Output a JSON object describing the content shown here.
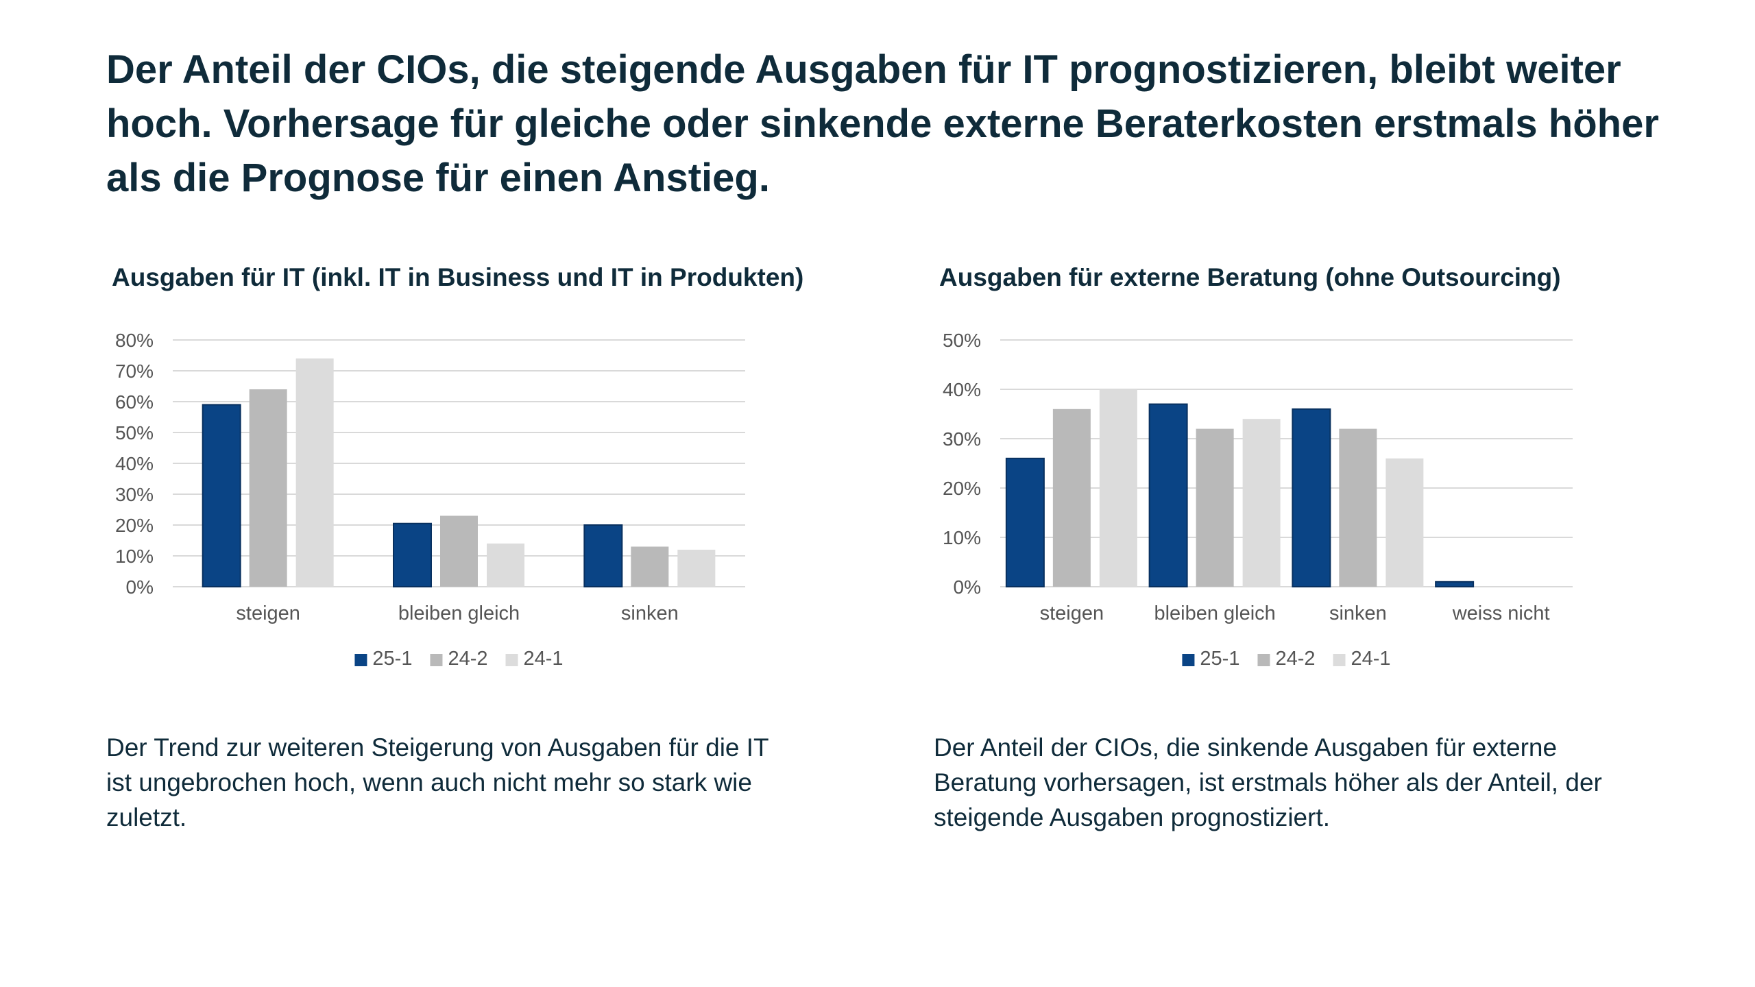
{
  "headline": "Der Anteil der CIOs, die steigende Ausgaben für IT prognostizieren, bleibt weiter hoch. Vorhersage für gleiche oder sinkende externe Beraterkosten erstmals höher als die Prognose für einen Anstieg.",
  "colors": {
    "series": [
      "#0a4485",
      "#b9b9b9",
      "#dcdcdc"
    ],
    "text": "#0f2b3a",
    "grid": "#d9d9d9",
    "axis_text": "#555555"
  },
  "panels": {
    "left": {
      "title": "Ausgaben für IT (inkl. IT in Business und IT in Produkten)",
      "caption": "Der Trend zur weiteren Steigerung von Ausgaben für die IT ist ungebrochen hoch, wenn auch nicht mehr so stark wie zuletzt."
    },
    "right": {
      "title": "Ausgaben für externe Beratung (ohne Outsourcing)",
      "caption": "Der Anteil der CIOs, die sinkende Ausgaben für externe Beratung vorhersagen, ist erstmals höher als der Anteil, der steigende Ausgaben prognostiziert."
    }
  },
  "chart_data": [
    {
      "type": "bar",
      "title": "Ausgaben für IT (inkl. IT in Business und IT in Produkten)",
      "categories": [
        "steigen",
        "bleiben gleich",
        "sinken"
      ],
      "series": [
        {
          "name": "25-1",
          "values": [
            59,
            20.5,
            20
          ]
        },
        {
          "name": "24-2",
          "values": [
            64,
            23,
            13
          ]
        },
        {
          "name": "24-1",
          "values": [
            74,
            14,
            12
          ]
        }
      ],
      "ylim": [
        0,
        80
      ],
      "yticks": [
        0,
        10,
        20,
        30,
        40,
        50,
        60,
        70,
        80
      ],
      "ytick_labels": [
        "0%",
        "10%",
        "20%",
        "30%",
        "40%",
        "50%",
        "60%",
        "70%",
        "80%"
      ],
      "grid": true,
      "legend_position": "bottom"
    },
    {
      "type": "bar",
      "title": "Ausgaben für externe Beratung (ohne Outsourcing)",
      "categories": [
        "steigen",
        "bleiben gleich",
        "sinken",
        "weiss nicht"
      ],
      "series": [
        {
          "name": "25-1",
          "values": [
            26,
            37,
            36,
            1
          ]
        },
        {
          "name": "24-2",
          "values": [
            36,
            32,
            32,
            0
          ]
        },
        {
          "name": "24-1",
          "values": [
            40,
            34,
            26,
            0
          ]
        }
      ],
      "ylim": [
        0,
        50
      ],
      "yticks": [
        0,
        10,
        20,
        30,
        40,
        50
      ],
      "ytick_labels": [
        "0%",
        "10%",
        "20%",
        "30%",
        "40%",
        "50%"
      ],
      "grid": true,
      "legend_position": "bottom"
    }
  ]
}
